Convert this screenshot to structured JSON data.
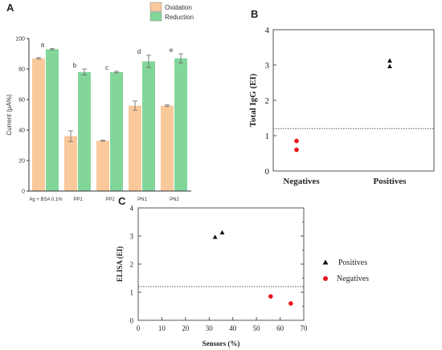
{
  "chart_data": [
    {
      "panel": "A",
      "type": "bar",
      "ylabel": "Current (μA%)",
      "ylim": [
        0,
        100
      ],
      "yticks": [
        0,
        20,
        40,
        60,
        80,
        100
      ],
      "categories": [
        "Ag + BSA 0.1%",
        "PP1",
        "PP2",
        "PN1",
        "PN2"
      ],
      "letters": [
        "a",
        "b",
        "c",
        "d",
        "e"
      ],
      "series": [
        {
          "name": "Oxidation",
          "color": "#f9c89b",
          "values": [
            87,
            36,
            33,
            56,
            56
          ],
          "errors": [
            0.5,
            3.5,
            0.3,
            3,
            0.5
          ]
        },
        {
          "name": "Reduction",
          "color": "#82d69a",
          "values": [
            93,
            78,
            78,
            85,
            87
          ],
          "errors": [
            0.5,
            2,
            0.5,
            4,
            3
          ]
        }
      ],
      "legend_position": "top"
    },
    {
      "panel": "B",
      "type": "scatter",
      "ylabel": "Total IgG (EI)",
      "ylim": [
        0,
        4
      ],
      "yticks": [
        0,
        1,
        2,
        3,
        4
      ],
      "categories": [
        "Negatives",
        "Positives"
      ],
      "series": [
        {
          "name": "Negatives",
          "category": 0,
          "marker": "circle",
          "color": "#e8161c",
          "values": [
            0.85,
            0.6
          ]
        },
        {
          "name": "Positives",
          "category": 1,
          "marker": "triangle",
          "color": "#111111",
          "values": [
            3.12,
            2.96
          ]
        }
      ],
      "cutoff": 1.2
    },
    {
      "panel": "C",
      "type": "scatter",
      "xlabel": "Sensors (%)",
      "ylabel": "ELISA (EI)",
      "xlim": [
        0,
        70
      ],
      "ylim": [
        0,
        4
      ],
      "xticks": [
        0,
        10,
        20,
        30,
        40,
        50,
        60,
        70
      ],
      "yticks": [
        0,
        1,
        2,
        3,
        4
      ],
      "series": [
        {
          "name": "Positives",
          "marker": "triangle",
          "color": "#111111",
          "points": [
            [
              32.5,
              2.96
            ],
            [
              35.5,
              3.12
            ]
          ]
        },
        {
          "name": "Negatives",
          "marker": "circle",
          "color": "#e8161c",
          "points": [
            [
              56,
              0.85
            ],
            [
              64.5,
              0.6
            ]
          ]
        }
      ],
      "cutoff": 1.2,
      "legend_position": "right"
    }
  ]
}
